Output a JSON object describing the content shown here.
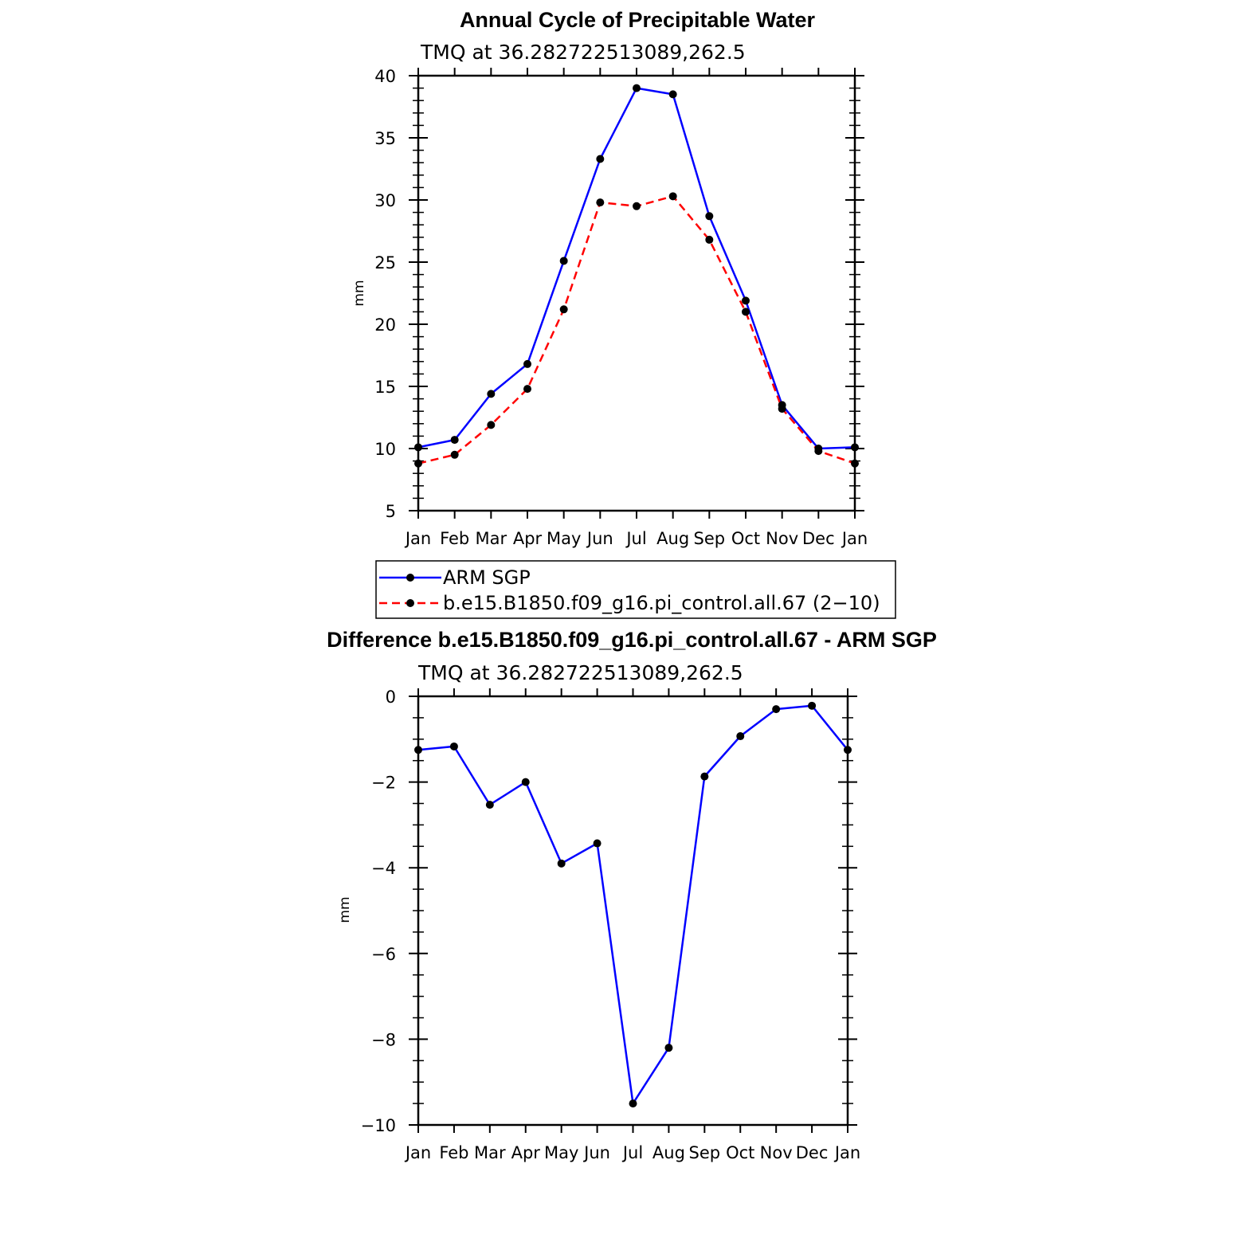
{
  "chart_data": [
    {
      "type": "line",
      "title": "Annual Cycle of Precipitable Water",
      "subtitle": "TMQ  at  36.282722513089,262.5",
      "xlabel": "",
      "ylabel": "mm",
      "categories": [
        "Jan",
        "Feb",
        "Mar",
        "Apr",
        "May",
        "Jun",
        "Jul",
        "Aug",
        "Sep",
        "Oct",
        "Nov",
        "Dec",
        "Jan"
      ],
      "ylim": [
        5,
        40
      ],
      "yticks": [
        "5",
        "10",
        "15",
        "20",
        "25",
        "30",
        "35",
        "40"
      ],
      "grid": false,
      "legend_position": "below",
      "series": [
        {
          "name": "ARM  SGP",
          "color": "#0000ff",
          "dash": "solid",
          "values": [
            10.1,
            10.7,
            14.4,
            16.8,
            25.1,
            33.3,
            39.0,
            38.5,
            28.7,
            21.9,
            13.5,
            10.0,
            10.1
          ]
        },
        {
          "name": "b.e15.B1850.f09_g16.pi_control.all.67  (2−10)",
          "color": "#ff0000",
          "dash": "dashed",
          "values": [
            8.8,
            9.5,
            11.9,
            14.8,
            21.2,
            29.8,
            29.5,
            30.3,
            26.8,
            21.0,
            13.2,
            9.8,
            8.8
          ]
        }
      ]
    },
    {
      "type": "line",
      "title": "Difference b.e15.B1850.f09_g16.pi_control.all.67 - ARM SGP",
      "subtitle": "TMQ  at  36.282722513089,262.5",
      "xlabel": "",
      "ylabel": "mm",
      "categories": [
        "Jan",
        "Feb",
        "Mar",
        "Apr",
        "May",
        "Jun",
        "Jul",
        "Aug",
        "Sep",
        "Oct",
        "Nov",
        "Dec",
        "Jan"
      ],
      "ylim": [
        -10,
        0
      ],
      "yticks": [
        "−10",
        "−8",
        "−6",
        "−4",
        "−2",
        "0"
      ],
      "grid": false,
      "series": [
        {
          "color": "#0000ff",
          "dash": "solid",
          "values": [
            -1.25,
            -1.17,
            -2.53,
            -2.0,
            -3.9,
            -3.43,
            -9.5,
            -8.2,
            -1.87,
            -0.93,
            -0.3,
            -0.22,
            -1.25
          ]
        }
      ]
    }
  ]
}
